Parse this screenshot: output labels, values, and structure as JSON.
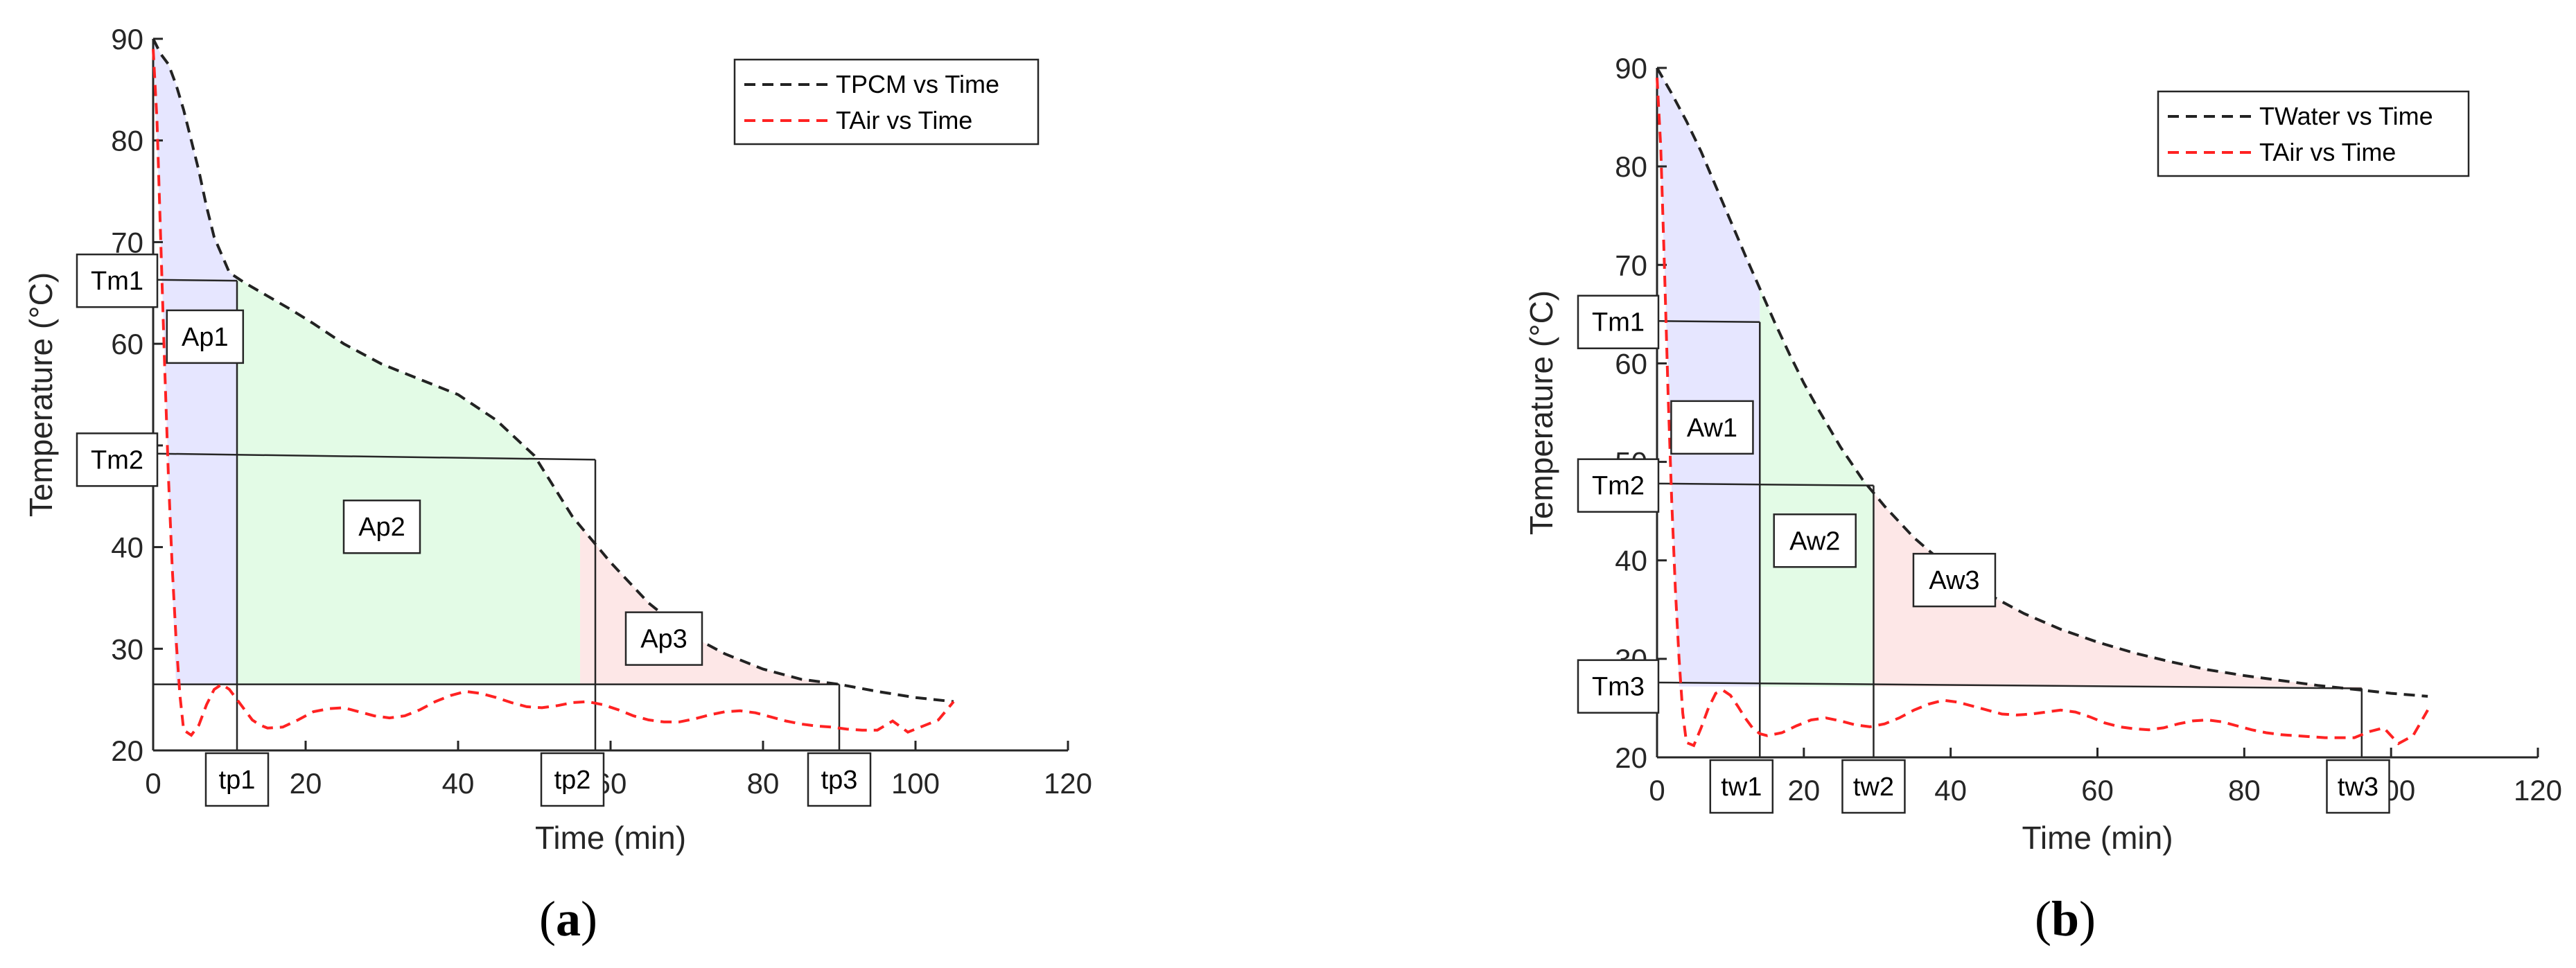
{
  "chart_data": [
    {
      "type": "line",
      "panel_label": "(a)",
      "caption_letter": "a",
      "xlabel": "Time (min)",
      "ylabel": "Temperature (°C)",
      "xlim": [
        0,
        120
      ],
      "ylim": [
        20,
        90
      ],
      "xticks": [
        0,
        20,
        40,
        60,
        80,
        100,
        120
      ],
      "yticks": [
        20,
        30,
        40,
        50,
        60,
        70,
        80,
        90
      ],
      "grid": false,
      "legend_position": "top-right",
      "colors": {
        "series0": "#222222",
        "series1": "#ff2222",
        "region0": "#e6e6ff",
        "region1": "#e3fbe6",
        "region2": "#fde7e7"
      },
      "series": [
        {
          "name": "TPCM vs Time",
          "style": "dashed",
          "x": [
            0,
            1,
            2,
            3,
            4,
            5,
            6,
            7,
            8,
            10,
            12,
            15,
            18,
            21,
            25,
            30,
            35,
            40,
            45,
            50,
            55,
            60,
            65,
            70,
            75,
            80,
            85,
            90,
            95,
            100,
            105
          ],
          "y": [
            90,
            88.5,
            87.5,
            85.5,
            83,
            80,
            77,
            73.5,
            70.5,
            67,
            66,
            64.7,
            63.4,
            62,
            60,
            58,
            56.5,
            55,
            52.5,
            49,
            43,
            38.5,
            34.5,
            31.5,
            29.5,
            28,
            27,
            26.5,
            25.8,
            25.2,
            24.8
          ]
        },
        {
          "name": "TAir vs Time",
          "style": "dashed",
          "x": [
            0,
            0.5,
            1,
            1.5,
            2,
            2.5,
            3,
            3.5,
            4,
            5,
            6,
            7,
            8,
            9,
            10,
            11,
            12,
            13,
            14,
            15,
            17,
            19,
            21,
            23,
            25,
            27,
            29,
            31,
            33,
            35,
            37,
            39,
            41,
            43,
            45,
            47,
            49,
            51,
            53,
            55,
            57,
            59,
            61,
            63,
            65,
            67,
            69,
            71,
            73,
            75,
            77,
            79,
            81,
            83,
            85,
            87,
            89,
            91,
            93,
            95,
            97,
            99,
            101,
            103,
            105
          ],
          "y": [
            89,
            82,
            70,
            58,
            47,
            38,
            31,
            25.5,
            22,
            21.5,
            22.5,
            24.5,
            26,
            26.5,
            26,
            25,
            24,
            23,
            22.5,
            22.2,
            22.3,
            23,
            23.8,
            24.1,
            24.2,
            23.8,
            23.4,
            23.2,
            23.4,
            24,
            24.8,
            25.4,
            25.8,
            25.6,
            25.2,
            24.7,
            24.3,
            24.2,
            24.4,
            24.7,
            24.8,
            24.5,
            24,
            23.4,
            23,
            22.8,
            22.8,
            23.1,
            23.5,
            23.8,
            23.9,
            23.7,
            23.3,
            22.9,
            22.6,
            22.4,
            22.3,
            22.1,
            22.0,
            22.0,
            22.9,
            21.8,
            22.4,
            23.0,
            24.8
          ]
        }
      ],
      "regions": [
        {
          "label": "Ap1",
          "x_start": 0,
          "x_end": 11,
          "lower_y": 26.5
        },
        {
          "label": "Ap2",
          "x_start": 11,
          "x_end": 56,
          "lower_y": 26.5
        },
        {
          "label": "Ap3",
          "x_start": 56,
          "x_end": 90,
          "lower_y": 26.5
        }
      ],
      "annotations": {
        "temperature_labels": [
          {
            "text": "Tm1",
            "y": 66.2
          },
          {
            "text": "Tm2",
            "y": 48.6
          }
        ],
        "time_labels": [
          {
            "text": "tp1",
            "x": 11
          },
          {
            "text": "tp2",
            "x": 55
          },
          {
            "text": "tp3",
            "x": 90
          }
        ],
        "area_labels": [
          {
            "text": "Ap1",
            "x": 6.8,
            "y": 60.7
          },
          {
            "text": "Ap2",
            "x": 30,
            "y": 42
          },
          {
            "text": "Ap3",
            "x": 67,
            "y": 31
          }
        ],
        "guide_lines": [
          {
            "from": [
              0,
              66.3
            ],
            "to": [
              11,
              66.2
            ]
          },
          {
            "from": [
              0,
              49.2
            ],
            "to": [
              58,
              48.6
            ]
          },
          {
            "from": [
              0,
              26.5
            ],
            "to": [
              90,
              26.5
            ]
          },
          {
            "from": [
              11,
              20
            ],
            "to": [
              11,
              66.2
            ]
          },
          {
            "from": [
              58,
              20
            ],
            "to": [
              58,
              48.6
            ]
          },
          {
            "from": [
              90,
              20
            ],
            "to": [
              90,
              26.5
            ]
          }
        ]
      }
    },
    {
      "type": "line",
      "panel_label": "(b)",
      "caption_letter": "b",
      "xlabel": "Time (min)",
      "ylabel": "Temperature (°C)",
      "xlim": [
        0,
        120
      ],
      "ylim": [
        20,
        90
      ],
      "xticks": [
        0,
        20,
        40,
        60,
        80,
        100,
        120
      ],
      "yticks": [
        20,
        30,
        40,
        50,
        60,
        70,
        80,
        90
      ],
      "grid": false,
      "legend_position": "top-right",
      "colors": {
        "series0": "#222222",
        "series1": "#ff2222",
        "region0": "#e6e6ff",
        "region1": "#e3fbe6",
        "region2": "#fde7e7"
      },
      "series": [
        {
          "name": "TWater vs Time",
          "style": "dashed",
          "x": [
            0,
            1,
            2,
            4,
            6,
            8,
            10,
            12,
            14,
            16,
            18,
            20,
            22,
            25,
            28,
            31,
            35,
            40,
            45,
            50,
            55,
            60,
            65,
            70,
            75,
            80,
            85,
            90,
            95,
            100,
            105
          ],
          "y": [
            90,
            88.7,
            87.4,
            84.6,
            81.5,
            78,
            74.5,
            71,
            67.6,
            64.2,
            61,
            58,
            55.3,
            51.5,
            48.2,
            45.5,
            42.3,
            39.1,
            36.6,
            34.6,
            33,
            31.7,
            30.6,
            29.7,
            28.9,
            28.3,
            27.8,
            27.3,
            26.9,
            26.5,
            26.2
          ]
        },
        {
          "name": "TAir vs Time",
          "style": "dashed",
          "x": [
            0,
            0.5,
            1,
            1.5,
            2,
            2.5,
            3,
            3.5,
            4,
            5,
            6,
            7,
            8,
            9,
            10,
            11,
            12,
            13,
            14,
            15,
            17,
            19,
            21,
            23,
            25,
            27,
            29,
            31,
            33,
            35,
            37,
            39,
            41,
            43,
            45,
            47,
            49,
            51,
            53,
            55,
            57,
            59,
            61,
            63,
            65,
            67,
            69,
            71,
            73,
            75,
            77,
            79,
            81,
            83,
            85,
            87,
            89,
            91,
            93,
            95,
            97,
            99,
            101,
            103,
            105
          ],
          "y": [
            89,
            82,
            70,
            57,
            46,
            37,
            30,
            24.5,
            21.5,
            21.2,
            23,
            25,
            26.5,
            26.8,
            26.3,
            25.2,
            24,
            23,
            22.4,
            22.2,
            22.5,
            23.2,
            23.8,
            24,
            23.7,
            23.3,
            23.1,
            23.4,
            24,
            24.8,
            25.4,
            25.8,
            25.6,
            25.2,
            24.8,
            24.4,
            24.3,
            24.4,
            24.6,
            24.8,
            24.6,
            24.1,
            23.5,
            23.1,
            22.9,
            22.8,
            23,
            23.4,
            23.7,
            23.8,
            23.6,
            23.2,
            22.8,
            22.5,
            22.3,
            22.2,
            22.1,
            22.0,
            22.0,
            22.0,
            22.6,
            23.0,
            21.4,
            22.2,
            24.8
          ]
        }
      ],
      "regions": [
        {
          "label": "Aw1",
          "x_start": 0,
          "x_end": 14,
          "lower_y": 27.2
        },
        {
          "label": "Aw2",
          "x_start": 14,
          "x_end": 29.5,
          "lower_y": 27.2
        },
        {
          "label": "Aw3",
          "x_start": 29.5,
          "x_end": 96,
          "lower_y": 27.2
        }
      ],
      "annotations": {
        "temperature_labels": [
          {
            "text": "Tm1",
            "y": 64.2
          },
          {
            "text": "Tm2",
            "y": 47.6
          },
          {
            "text": "Tm3",
            "y": 27.2
          }
        ],
        "time_labels": [
          {
            "text": "tw1",
            "x": 11.5
          },
          {
            "text": "tw2",
            "x": 29.5
          },
          {
            "text": "tw3",
            "x": 95.5
          }
        ],
        "area_labels": [
          {
            "text": "Aw1",
            "x": 7.5,
            "y": 53.5
          },
          {
            "text": "Aw2",
            "x": 21.5,
            "y": 42
          },
          {
            "text": "Aw3",
            "x": 40.5,
            "y": 38
          }
        ],
        "guide_lines": [
          {
            "from": [
              0,
              64.3
            ],
            "to": [
              14,
              64.2
            ]
          },
          {
            "from": [
              0,
              47.8
            ],
            "to": [
              29.5,
              47.6
            ]
          },
          {
            "from": [
              0,
              27.6
            ],
            "to": [
              96,
              27
            ]
          },
          {
            "from": [
              14,
              20
            ],
            "to": [
              14,
              64.2
            ]
          },
          {
            "from": [
              29.5,
              20
            ],
            "to": [
              29.5,
              47.6
            ]
          },
          {
            "from": [
              96,
              20
            ],
            "to": [
              96,
              27
            ]
          }
        ]
      }
    }
  ]
}
